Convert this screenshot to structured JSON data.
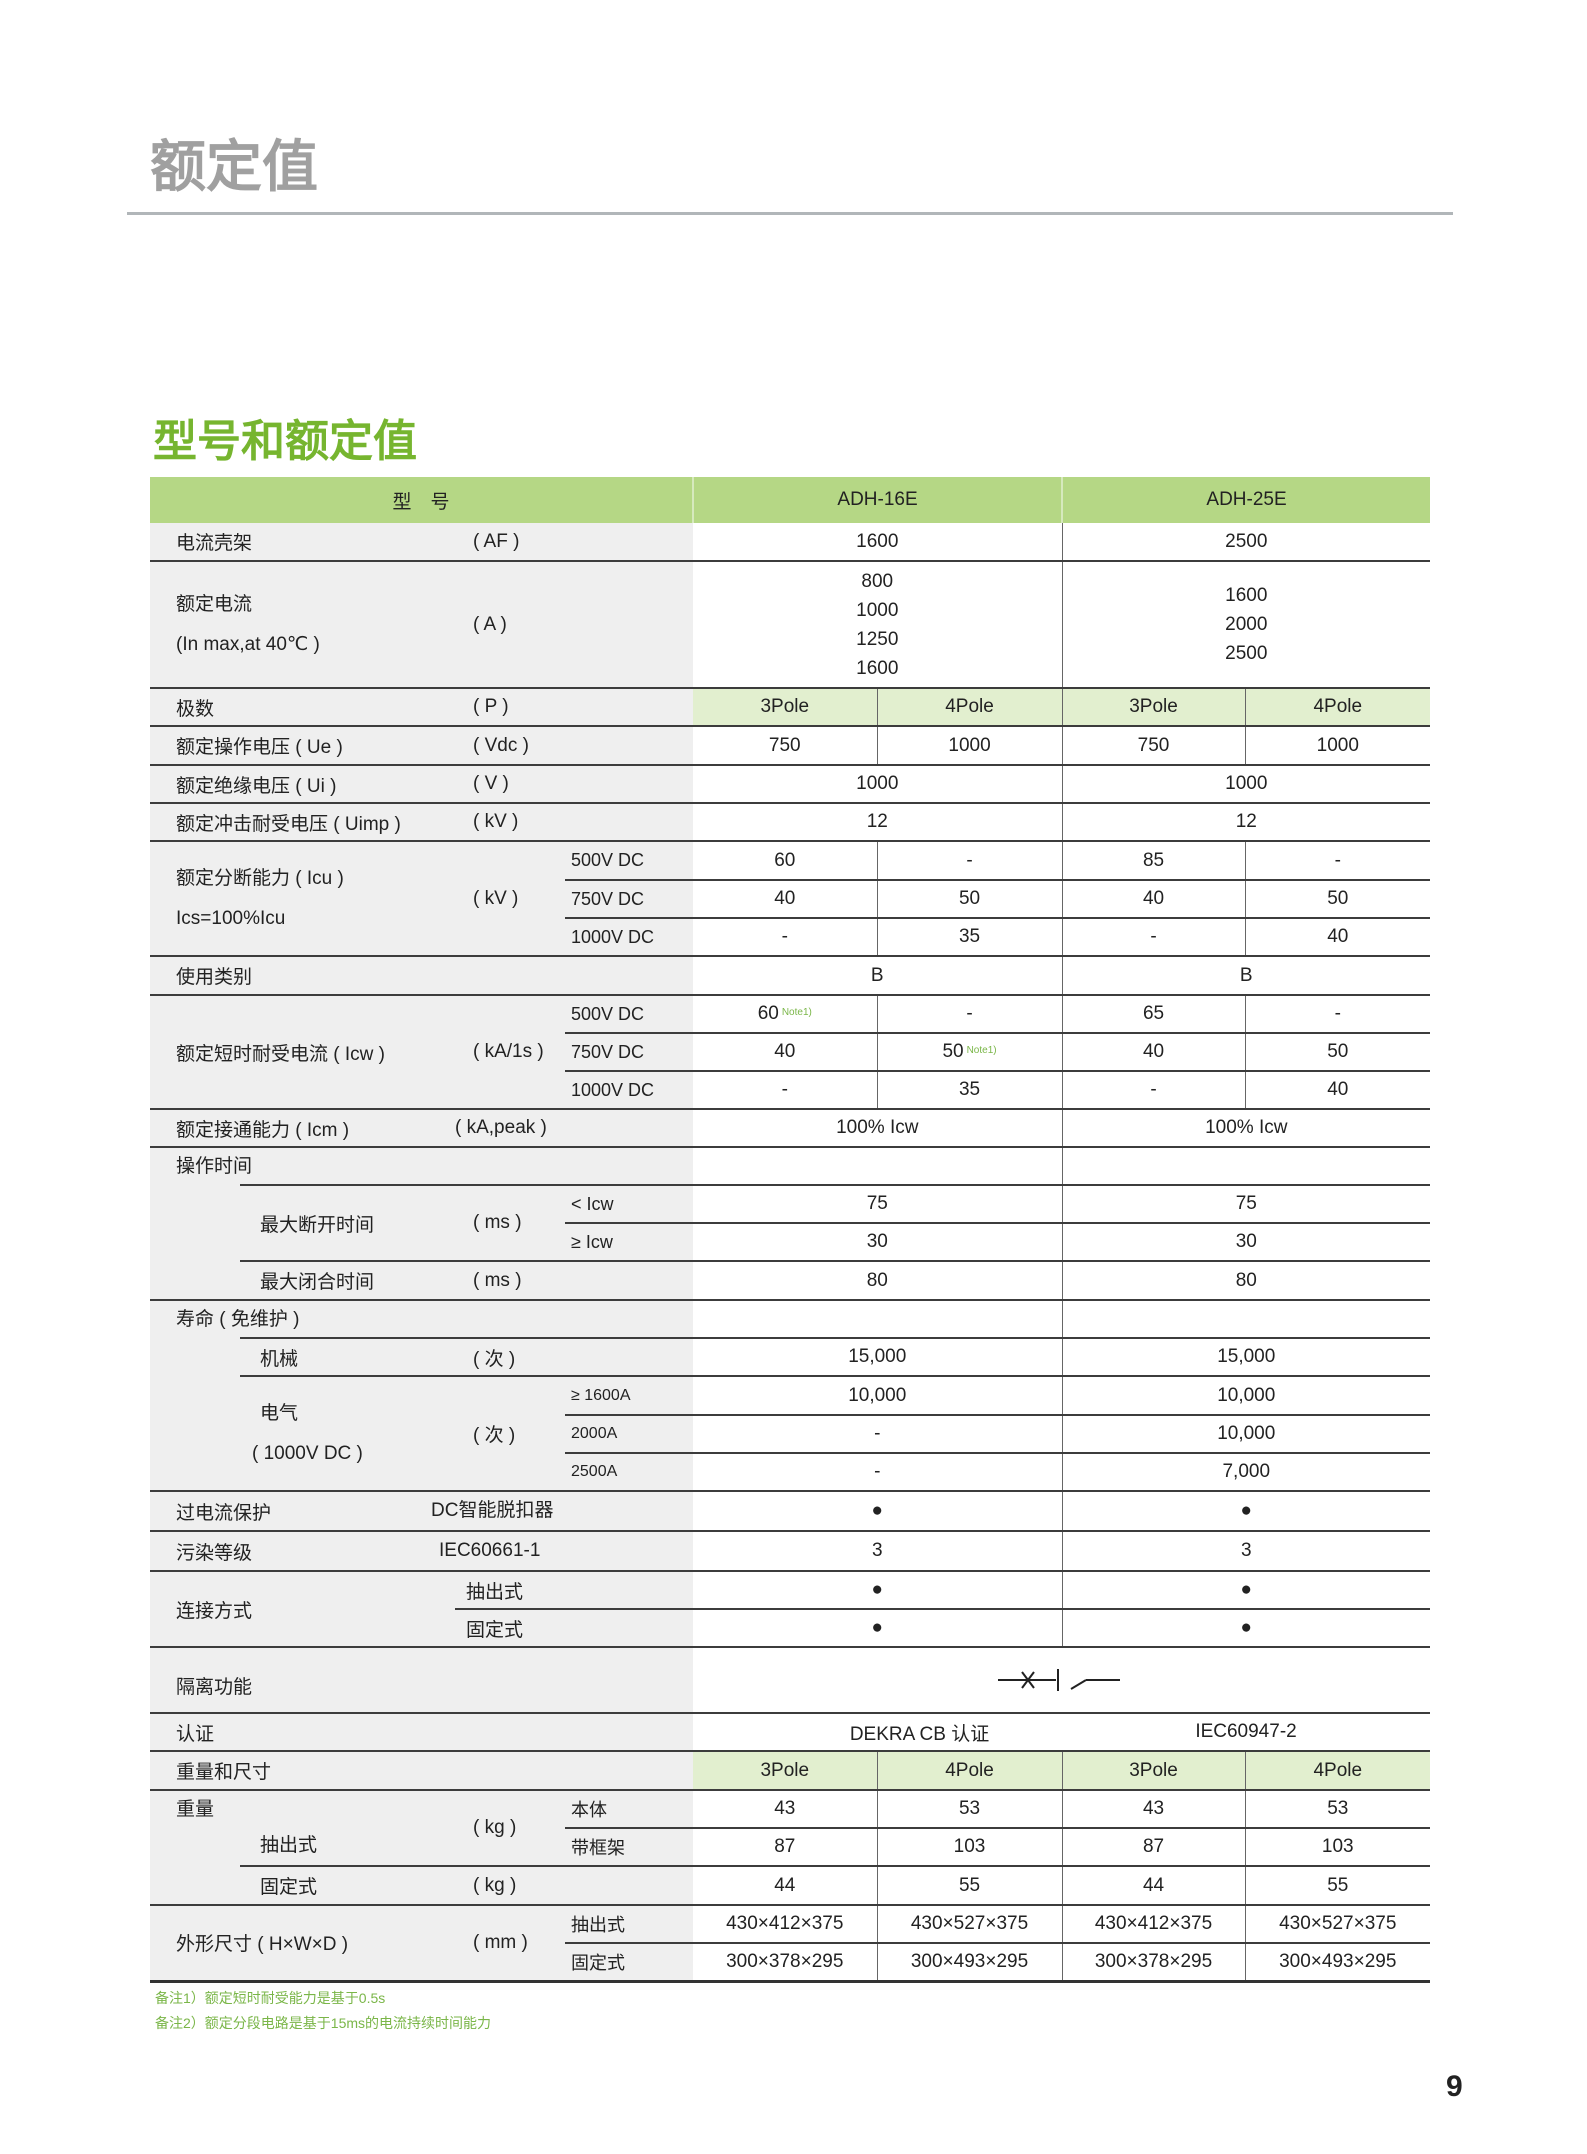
{
  "page": {
    "section_title": "额定值",
    "subtitle": "型号和额定值",
    "page_number": "9"
  },
  "colors": {
    "header_green": "#b5d785",
    "pole_green": "#e2efcf",
    "subtitle_green": "#76b52f",
    "title_gray": "#a0a0a0",
    "label_bg": "#efefef",
    "note_green": "#7ab648"
  },
  "table": {
    "header": {
      "label": "型　号",
      "models": [
        "ADH-16E",
        "ADH-25E"
      ]
    },
    "frame": {
      "label": "电流壳架",
      "unit": "( AF )",
      "values": [
        "1600",
        "2500"
      ]
    },
    "rated_current": {
      "label": "额定电流",
      "label2": "(In max,at 40℃ )",
      "unit": "( A )",
      "values": [
        [
          "800",
          "1000",
          "1250",
          "1600"
        ],
        [
          "1600",
          "2000",
          "2500"
        ]
      ]
    },
    "poles": {
      "label": "极数",
      "unit": "( P )",
      "values": [
        "3Pole",
        "4Pole",
        "3Pole",
        "4Pole"
      ]
    },
    "ue": {
      "label": "额定操作电压 ( Ue )",
      "unit": "( Vdc )",
      "values": [
        "750",
        "1000",
        "750",
        "1000"
      ]
    },
    "ui": {
      "label": "额定绝缘电压 ( Ui )",
      "unit": "( V )",
      "values": [
        "1000",
        "1000"
      ]
    },
    "uimp": {
      "label": "额定冲击耐受电压 ( Uimp )",
      "unit": "( kV )",
      "values": [
        "12",
        "12"
      ]
    },
    "icu": {
      "label": "额定分断能力 ( Icu )",
      "label2": "Ics=100%Icu",
      "unit": "( kV )",
      "rows": [
        {
          "sub": "500V DC",
          "values": [
            "60",
            "-",
            "85",
            "-"
          ]
        },
        {
          "sub": "750V DC",
          "values": [
            "40",
            "50",
            "40",
            "50"
          ]
        },
        {
          "sub": "1000V DC",
          "values": [
            "-",
            "35",
            "-",
            "40"
          ]
        }
      ]
    },
    "category": {
      "label": "使用类别",
      "values": [
        "B",
        "B"
      ]
    },
    "icw": {
      "label": "额定短时耐受电流 ( Icw )",
      "unit": "( kA/1s )",
      "note": "Note1)",
      "rows": [
        {
          "sub": "500V DC",
          "values": [
            "60",
            "-",
            "65",
            "-"
          ]
        },
        {
          "sub": "750V DC",
          "values": [
            "40",
            "50",
            "40",
            "50"
          ]
        },
        {
          "sub": "1000V DC",
          "values": [
            "-",
            "35",
            "-",
            "40"
          ]
        }
      ]
    },
    "icm": {
      "label": "额定接通能力 ( Icm )",
      "unit": "( kA,peak )",
      "values": [
        "100% Icw",
        "100% Icw"
      ]
    },
    "op_time": {
      "label": "操作时间",
      "open": {
        "label": "最大断开时间",
        "unit": "( ms )",
        "rows": [
          {
            "sub": "< Icw",
            "values": [
              "75",
              "75"
            ]
          },
          {
            "sub": "≥ Icw",
            "values": [
              "30",
              "30"
            ]
          }
        ]
      },
      "close": {
        "label": "最大闭合时间",
        "unit": "( ms )",
        "values": [
          "80",
          "80"
        ]
      }
    },
    "life": {
      "label": "寿命 ( 免维护 )",
      "mechanical": {
        "label": "机械",
        "unit": "( 次 )",
        "values": [
          "15,000",
          "15,000"
        ]
      },
      "electrical": {
        "label": "电气",
        "label2": "( 1000V DC )",
        "unit": "( 次 )",
        "rows": [
          {
            "sub": "≥ 1600A",
            "values": [
              "10,000",
              "10,000"
            ]
          },
          {
            "sub": "2000A",
            "values": [
              "-",
              "10,000"
            ]
          },
          {
            "sub": "2500A",
            "values": [
              "-",
              "7,000"
            ]
          }
        ]
      }
    },
    "overcurrent": {
      "label": "过电流保护",
      "sub": "DC智能脱扣器",
      "values": [
        "●",
        "●"
      ]
    },
    "pollution": {
      "label": "污染等级",
      "sub": "IEC60661-1",
      "values": [
        "3",
        "3"
      ]
    },
    "connection": {
      "label": "连接方式",
      "rows": [
        {
          "sub": "抽出式",
          "values": [
            "●",
            "●"
          ]
        },
        {
          "sub": "固定式",
          "values": [
            "●",
            "●"
          ]
        }
      ]
    },
    "isolation": {
      "label": "隔离功能",
      "symbol": "isolation-symbol-icon"
    },
    "certification": {
      "label": "认证",
      "values": [
        "DEKRA CB 认证",
        "IEC60947-2"
      ]
    },
    "weight_dim": {
      "label": "重量和尺寸",
      "poles": [
        "3Pole",
        "4Pole",
        "3Pole",
        "4Pole"
      ]
    },
    "weight": {
      "label": "重量",
      "withdrawable": "抽出式",
      "unit": "( kg )",
      "rows": [
        {
          "sub": "本体",
          "values": [
            "43",
            "53",
            "43",
            "53"
          ]
        },
        {
          "sub": "带框架",
          "values": [
            "87",
            "103",
            "87",
            "103"
          ]
        }
      ],
      "fixed": {
        "label": "固定式",
        "unit": "( kg )",
        "values": [
          "44",
          "55",
          "44",
          "55"
        ]
      }
    },
    "dimensions": {
      "label": "外形尺寸 ( H×W×D )",
      "unit": "( mm )",
      "rows": [
        {
          "sub": "抽出式",
          "values": [
            "430×412×375",
            "430×527×375",
            "430×412×375",
            "430×527×375"
          ]
        },
        {
          "sub": "固定式",
          "values": [
            "300×378×295",
            "300×493×295",
            "300×378×295",
            "300×493×295"
          ]
        }
      ]
    }
  },
  "notes": [
    "备注1）额定短时耐受能力是基于0.5s",
    "备注2）额定分段电路是基于15ms的电流持续时间能力"
  ]
}
